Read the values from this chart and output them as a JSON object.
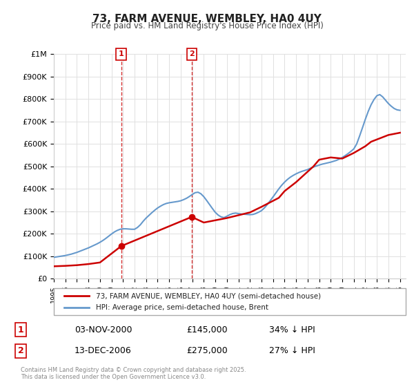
{
  "title": "73, FARM AVENUE, WEMBLEY, HA0 4UY",
  "subtitle": "Price paid vs. HM Land Registry's House Price Index (HPI)",
  "legend_line1": "73, FARM AVENUE, WEMBLEY, HA0 4UY (semi-detached house)",
  "legend_line2": "HPI: Average price, semi-detached house, Brent",
  "annotation1": [
    "1",
    "03-NOV-2000",
    "£145,000",
    "34% ↓ HPI"
  ],
  "annotation2": [
    "2",
    "13-DEC-2006",
    "£275,000",
    "27% ↓ HPI"
  ],
  "footer": "Contains HM Land Registry data © Crown copyright and database right 2025.\nThis data is licensed under the Open Government Licence v3.0.",
  "price_color": "#cc0000",
  "hpi_color": "#6699cc",
  "marker_vline_color": "#cc0000",
  "ylim": [
    0,
    1000000
  ],
  "yticks": [
    0,
    100000,
    200000,
    300000,
    400000,
    500000,
    600000,
    700000,
    800000,
    900000,
    1000000
  ],
  "xlim_start": 1995.0,
  "xlim_end": 2025.5,
  "purchase1_x": 2000.84,
  "purchase1_y": 145000,
  "purchase2_x": 2006.95,
  "purchase2_y": 275000,
  "hpi_x": [
    1995.0,
    1995.25,
    1995.5,
    1995.75,
    1996.0,
    1996.25,
    1996.5,
    1996.75,
    1997.0,
    1997.25,
    1997.5,
    1997.75,
    1998.0,
    1998.25,
    1998.5,
    1998.75,
    1999.0,
    1999.25,
    1999.5,
    1999.75,
    2000.0,
    2000.25,
    2000.5,
    2000.75,
    2001.0,
    2001.25,
    2001.5,
    2001.75,
    2002.0,
    2002.25,
    2002.5,
    2002.75,
    2003.0,
    2003.25,
    2003.5,
    2003.75,
    2004.0,
    2004.25,
    2004.5,
    2004.75,
    2005.0,
    2005.25,
    2005.5,
    2005.75,
    2006.0,
    2006.25,
    2006.5,
    2006.75,
    2007.0,
    2007.25,
    2007.5,
    2007.75,
    2008.0,
    2008.25,
    2008.5,
    2008.75,
    2009.0,
    2009.25,
    2009.5,
    2009.75,
    2010.0,
    2010.25,
    2010.5,
    2010.75,
    2011.0,
    2011.25,
    2011.5,
    2011.75,
    2012.0,
    2012.25,
    2012.5,
    2012.75,
    2013.0,
    2013.25,
    2013.5,
    2013.75,
    2014.0,
    2014.25,
    2014.5,
    2014.75,
    2015.0,
    2015.25,
    2015.5,
    2015.75,
    2016.0,
    2016.25,
    2016.5,
    2016.75,
    2017.0,
    2017.25,
    2017.5,
    2017.75,
    2018.0,
    2018.25,
    2018.5,
    2018.75,
    2019.0,
    2019.25,
    2019.5,
    2019.75,
    2020.0,
    2020.25,
    2020.5,
    2020.75,
    2021.0,
    2021.25,
    2021.5,
    2021.75,
    2022.0,
    2022.25,
    2022.5,
    2022.75,
    2023.0,
    2023.25,
    2023.5,
    2023.75,
    2024.0,
    2024.25,
    2024.5,
    2024.75,
    2025.0
  ],
  "hpi_y": [
    95000,
    97000,
    99000,
    101000,
    103000,
    106000,
    109000,
    113000,
    117000,
    122000,
    127000,
    132000,
    137000,
    143000,
    149000,
    155000,
    162000,
    170000,
    179000,
    189000,
    199000,
    208000,
    215000,
    220000,
    222000,
    222000,
    221000,
    220000,
    220000,
    228000,
    240000,
    256000,
    270000,
    282000,
    294000,
    305000,
    315000,
    323000,
    330000,
    335000,
    338000,
    340000,
    342000,
    344000,
    347000,
    352000,
    358000,
    366000,
    375000,
    383000,
    385000,
    378000,
    365000,
    348000,
    330000,
    312000,
    295000,
    283000,
    275000,
    272000,
    278000,
    285000,
    290000,
    292000,
    290000,
    288000,
    287000,
    286000,
    285000,
    286000,
    290000,
    296000,
    303000,
    315000,
    330000,
    347000,
    364000,
    382000,
    400000,
    416000,
    430000,
    442000,
    452000,
    460000,
    467000,
    473000,
    478000,
    482000,
    486000,
    492000,
    497000,
    502000,
    506000,
    510000,
    513000,
    516000,
    519000,
    523000,
    527000,
    533000,
    540000,
    548000,
    557000,
    567000,
    578000,
    600000,
    635000,
    672000,
    710000,
    745000,
    775000,
    798000,
    815000,
    820000,
    810000,
    795000,
    780000,
    768000,
    758000,
    752000,
    750000
  ],
  "price_x": [
    1995.0,
    1996.0,
    1997.0,
    1998.0,
    1999.0,
    2000.84,
    2006.95,
    2008.0,
    2010.0,
    2012.0,
    2013.0,
    2014.5,
    2015.0,
    2016.0,
    2017.5,
    2018.0,
    2019.0,
    2020.0,
    2021.0,
    2022.0,
    2022.5,
    2023.0,
    2023.5,
    2024.0,
    2024.5,
    2025.0
  ],
  "price_y": [
    55000,
    57000,
    60000,
    65000,
    72000,
    145000,
    275000,
    250000,
    270000,
    295000,
    320000,
    360000,
    390000,
    430000,
    500000,
    530000,
    540000,
    535000,
    560000,
    590000,
    610000,
    620000,
    630000,
    640000,
    645000,
    650000
  ],
  "background_color": "#ffffff",
  "grid_color": "#e0e0e0"
}
